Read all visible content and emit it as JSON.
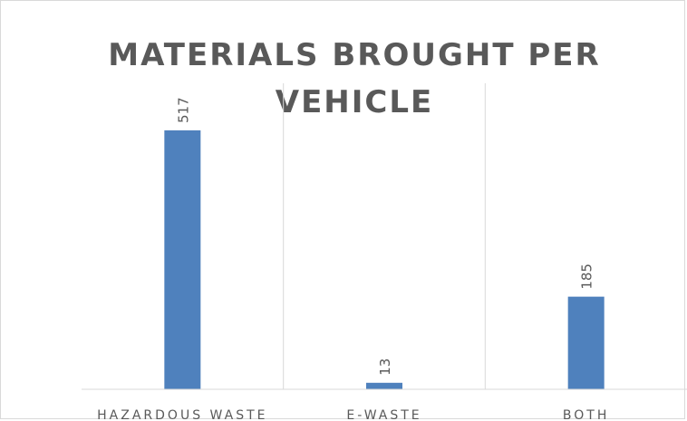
{
  "chart_data": {
    "type": "bar",
    "title": "MATERIALS BROUGHT PER VEHICLE",
    "categories": [
      "HAZARDOUS WASTE",
      "E-WASTE",
      "BOTH"
    ],
    "values": [
      517,
      13,
      185
    ],
    "data_labels": [
      "517",
      "13",
      "185"
    ],
    "ylim": [
      0,
      600
    ],
    "grid": "vertical category separators",
    "legend": "none",
    "bar_color": "#4f81bd"
  }
}
